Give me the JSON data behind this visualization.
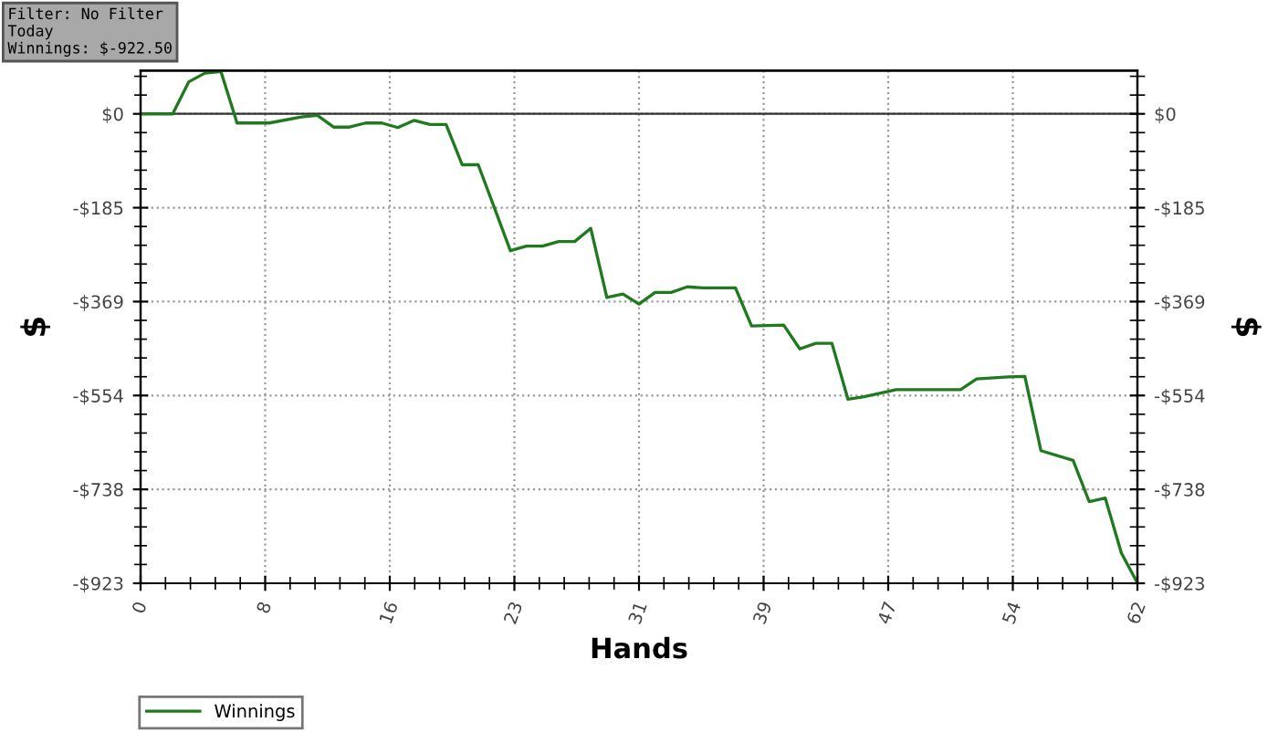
{
  "chart_data": {
    "type": "line",
    "xlabel": "Hands",
    "ylabel": "$",
    "y2label": "$",
    "annotations": [
      "Filter: No Filter",
      "Today",
      "Winnings: $-922.50"
    ],
    "series": [
      {
        "name": "Winnings",
        "color": "#1f7a1f",
        "x": [
          0,
          2,
          3,
          4,
          5,
          6,
          8,
          10,
          11,
          12,
          13,
          14,
          15,
          16,
          17,
          18,
          19,
          20,
          21,
          22,
          23,
          24,
          25,
          26,
          27,
          28,
          29,
          30,
          31,
          32,
          33,
          34,
          35,
          37,
          38,
          40,
          41,
          42,
          43,
          44,
          45,
          47,
          51,
          52,
          54,
          55,
          56,
          58,
          59,
          60,
          61,
          62
        ],
        "values": [
          0,
          0,
          63,
          80,
          83,
          -18,
          -18,
          -6,
          -3,
          -26,
          -26,
          -18,
          -18,
          -27,
          -13,
          -21,
          -21,
          -100,
          -100,
          -184,
          -269,
          -260,
          -260,
          -251,
          -251,
          -225,
          -361,
          -354,
          -374,
          -351,
          -351,
          -340,
          -342,
          -342,
          -417,
          -415,
          -462,
          -451,
          -451,
          -561,
          -556,
          -542,
          -542,
          -521,
          -517,
          -516,
          -662,
          -681,
          -762,
          -755,
          -863,
          -922
        ]
      }
    ],
    "xlim": [
      0,
      62
    ],
    "xticks": [
      0,
      {
        "value": 7.75,
        "label": "8"
      },
      {
        "value": 15.5,
        "label": "16"
      },
      {
        "value": 23.25,
        "label": "23"
      },
      31,
      {
        "value": 38.75,
        "label": "39"
      },
      {
        "value": 46.5,
        "label": "47"
      },
      {
        "value": 54.25,
        "label": "54"
      },
      62
    ],
    "ylim": [
      -922.5,
      85
    ],
    "yticks": [
      {
        "value": 0,
        "label": "$0"
      },
      {
        "value": -184.5,
        "label": "-$185"
      },
      {
        "value": -369,
        "label": "-$369"
      },
      {
        "value": -553.5,
        "label": "-$554"
      },
      {
        "value": -738,
        "label": "-$738"
      },
      {
        "value": -922.5,
        "label": "-$923"
      }
    ],
    "y2lim": [
      -922.5,
      85
    ],
    "y2ticks": [
      {
        "value": 0,
        "label": "$0"
      },
      {
        "value": -184.5,
        "label": "-$185"
      },
      {
        "value": -369,
        "label": "-$369"
      },
      {
        "value": -553.5,
        "label": "-$554"
      },
      {
        "value": -738,
        "label": "-$738"
      },
      {
        "value": -922.5,
        "label": "-$923"
      }
    ],
    "ref_lines": [
      {
        "axis": "y",
        "value": 0,
        "color": "#333333",
        "line_style": "solid"
      }
    ],
    "grid": true,
    "legend": "bottom left",
    "marker": "none",
    "line_style": "solid"
  }
}
